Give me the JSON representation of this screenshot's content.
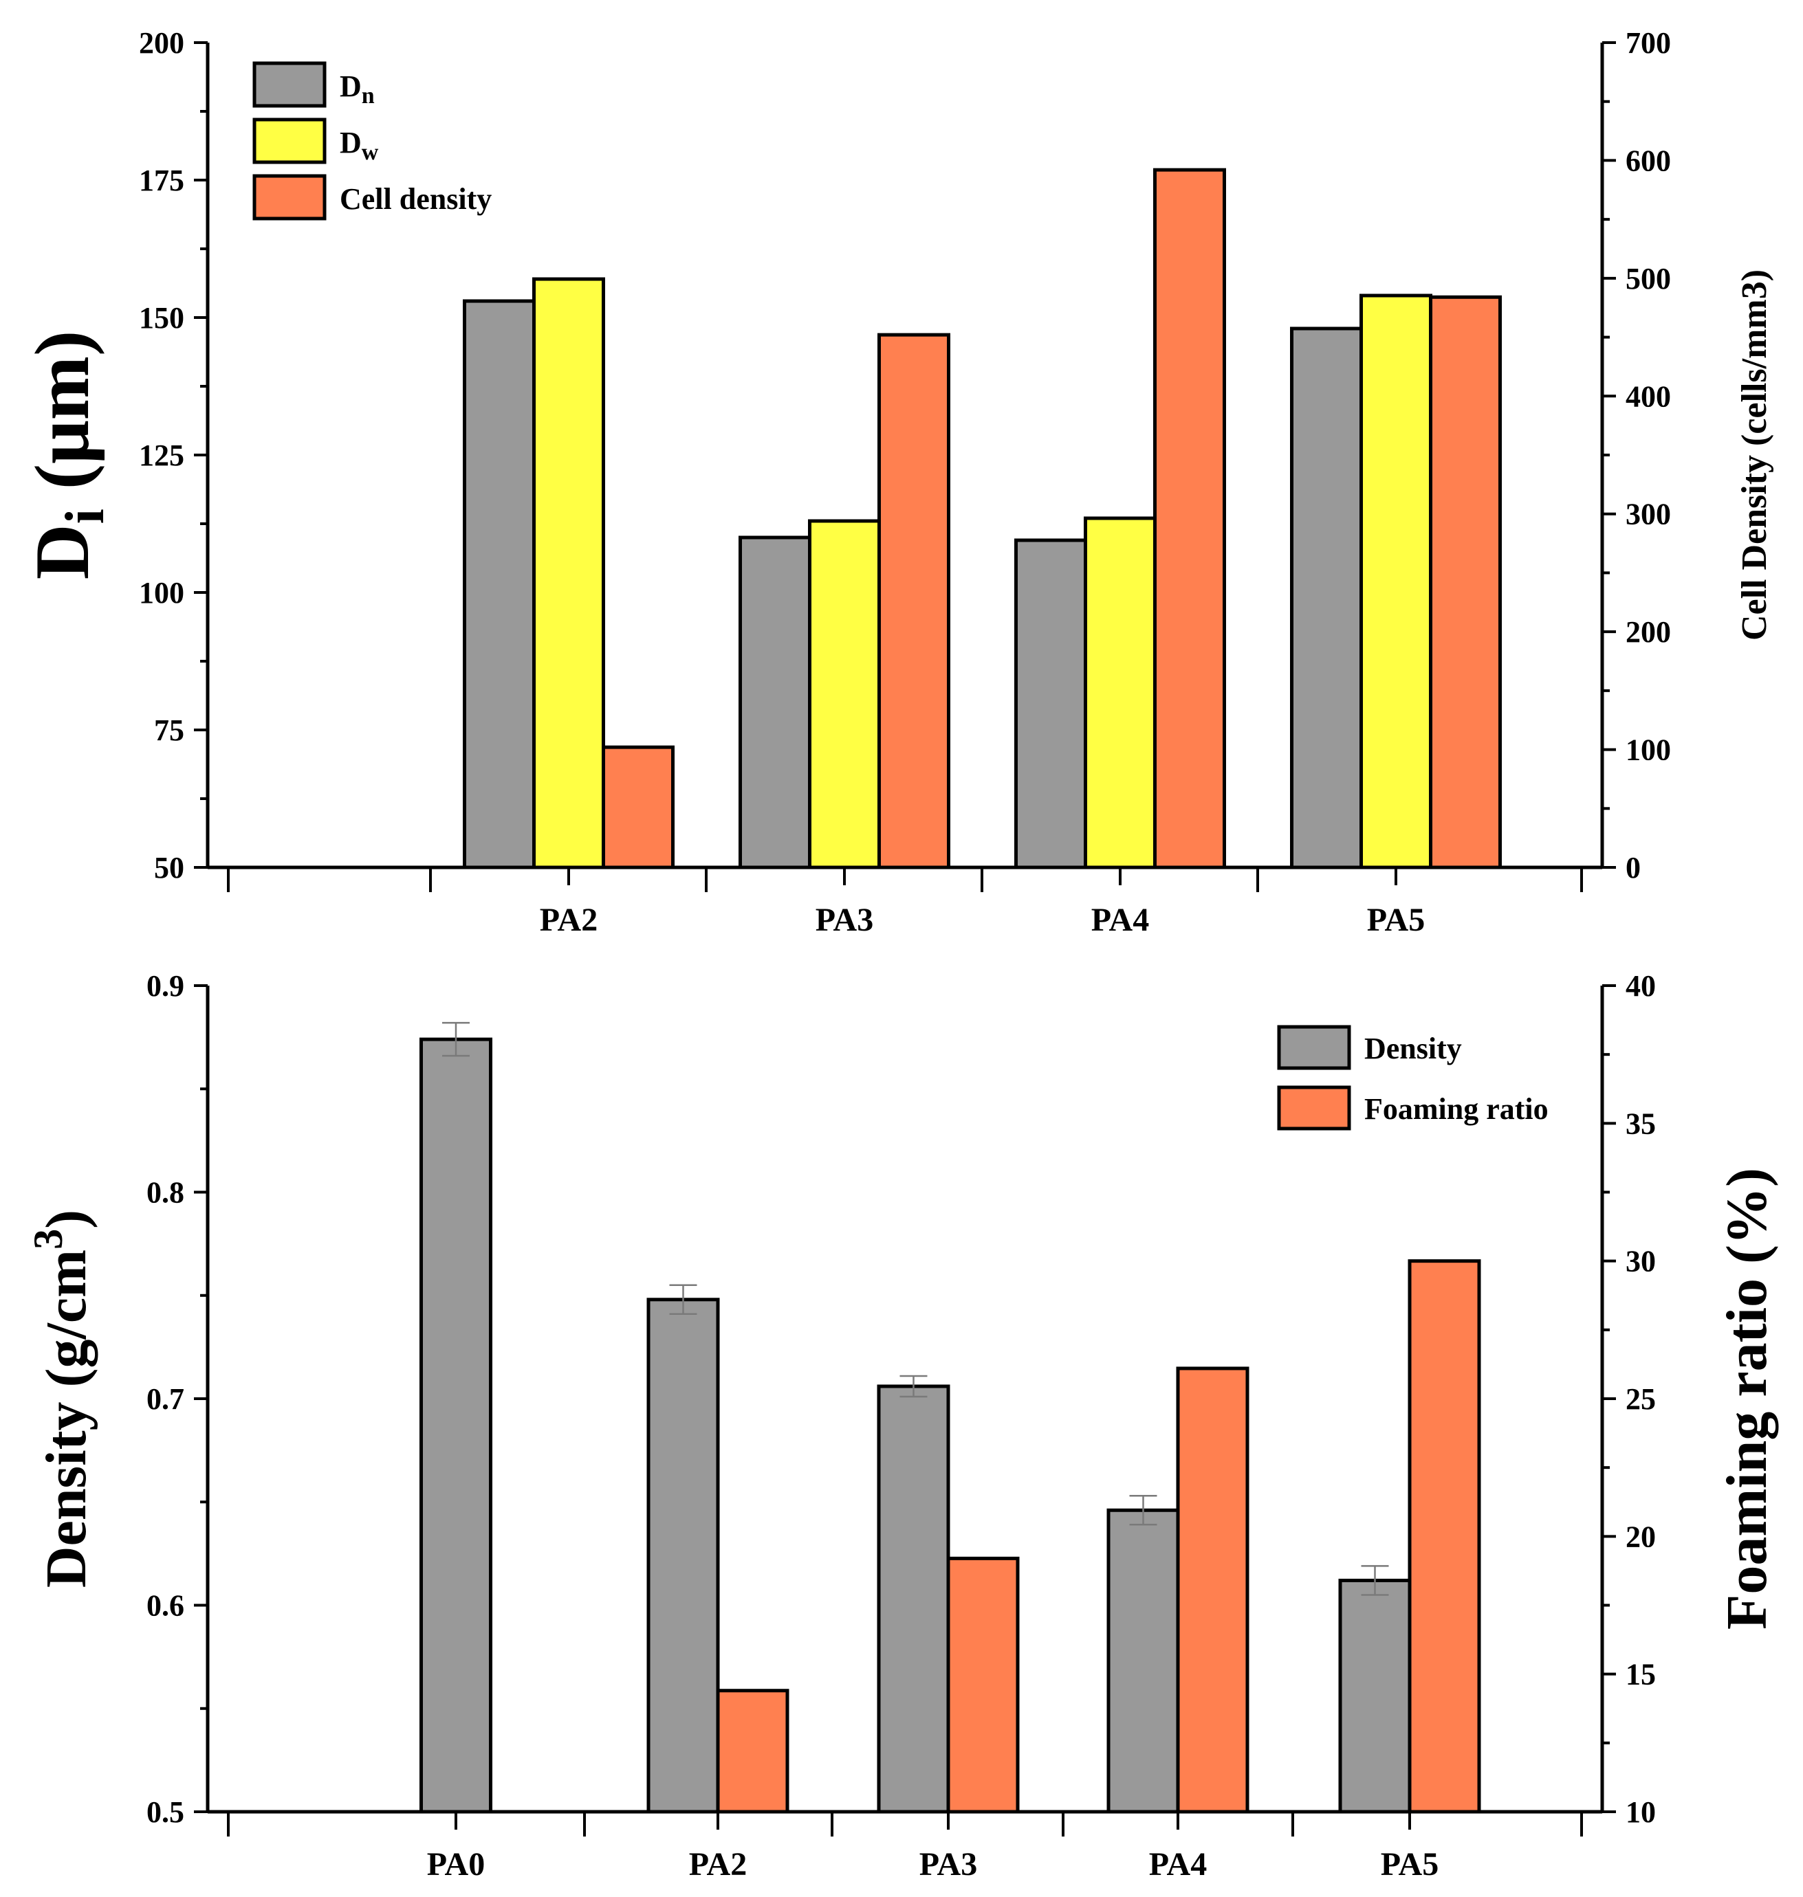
{
  "chart_data": [
    {
      "type": "bar",
      "title": "",
      "categories": [
        "PA2",
        "PA3",
        "PA4",
        "PA5"
      ],
      "ylabel_left": {
        "main": "D",
        "sub": "i",
        "rest": " (μm)"
      },
      "ylabel_right": "Cell Density (cells/mm3)",
      "ylim_left": [
        50,
        200
      ],
      "yticks_left": [
        50,
        75,
        100,
        125,
        150,
        175,
        200
      ],
      "ylim_right": [
        0,
        700
      ],
      "yticks_right": [
        0,
        100,
        200,
        300,
        400,
        500,
        600,
        700
      ],
      "series": [
        {
          "name": "Dn",
          "legend_main": "D",
          "legend_sub": "n",
          "axis": "left",
          "color": "#999999",
          "values": [
            153,
            110,
            109.5,
            148
          ]
        },
        {
          "name": "Dw",
          "legend_main": "D",
          "legend_sub": "w",
          "axis": "left",
          "color": "#ffff44",
          "values": [
            157,
            113,
            113.5,
            154
          ]
        },
        {
          "name": "Cell density",
          "legend_main": "Cell density",
          "legend_sub": "",
          "axis": "right",
          "color": "#ff8050",
          "values": [
            102,
            452,
            592,
            484
          ]
        }
      ],
      "legend_position": "top-left"
    },
    {
      "type": "bar",
      "title": "",
      "categories": [
        "PA0",
        "PA2",
        "PA3",
        "PA4",
        "PA5"
      ],
      "ylabel_left": {
        "main": "Density (g/cm",
        "sup": "3",
        "rest": ")"
      },
      "ylabel_right": "Foaming ratio (%)",
      "ylim_left": [
        0.5,
        0.9
      ],
      "yticks_left": [
        "0.5",
        "0.6",
        "0.7",
        "0.8",
        "0.9"
      ],
      "ylim_right": [
        10,
        40
      ],
      "yticks_right": [
        10,
        15,
        20,
        25,
        30,
        35,
        40
      ],
      "series": [
        {
          "name": "Density",
          "axis": "left",
          "color": "#999999",
          "values": [
            0.874,
            0.748,
            0.706,
            0.646,
            0.612
          ],
          "errors": [
            0.008,
            0.007,
            0.005,
            0.007,
            0.007
          ]
        },
        {
          "name": "Foaming ratio",
          "axis": "right",
          "color": "#ff8050",
          "values": [
            null,
            14.4,
            19.2,
            26.1,
            30.0
          ]
        }
      ],
      "legend_position": "top-right"
    }
  ]
}
